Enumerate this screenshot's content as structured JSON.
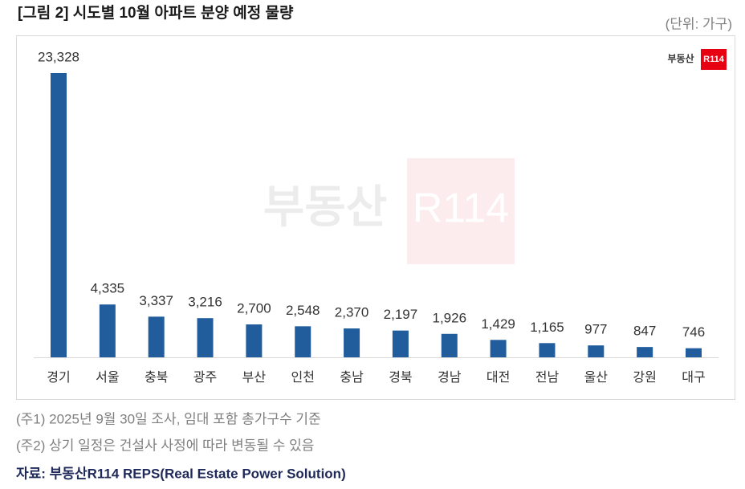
{
  "chart_data": {
    "type": "bar",
    "title": "[그림 2] 시도별 10월 아파트 분양 예정 물량",
    "unit": "(단위: 가구)",
    "logo": {
      "text": "부동산",
      "badge": "R114"
    },
    "categories": [
      "경기",
      "서울",
      "충북",
      "광주",
      "부산",
      "인천",
      "충남",
      "경북",
      "경남",
      "대전",
      "전남",
      "울산",
      "강원",
      "대구"
    ],
    "values": [
      23328,
      4335,
      3337,
      3216,
      2700,
      2548,
      2370,
      2197,
      1926,
      1429,
      1165,
      977,
      847,
      746
    ],
    "value_labels": [
      "23,328",
      "4,335",
      "3,337",
      "3,216",
      "2,700",
      "2,548",
      "2,370",
      "2,197",
      "1,926",
      "1,429",
      "1,165",
      "977",
      "847",
      "746"
    ],
    "color": "#215d9c",
    "notes": [
      "(주1) 2025년 9월 30일 조사, 임대 포함 총가구수 기준",
      "(주2) 상기 일정은 건설사 사정에 따라 변동될 수 있음"
    ],
    "source": "자료: 부동산R114 REPS(Real Estate Power Solution)"
  }
}
